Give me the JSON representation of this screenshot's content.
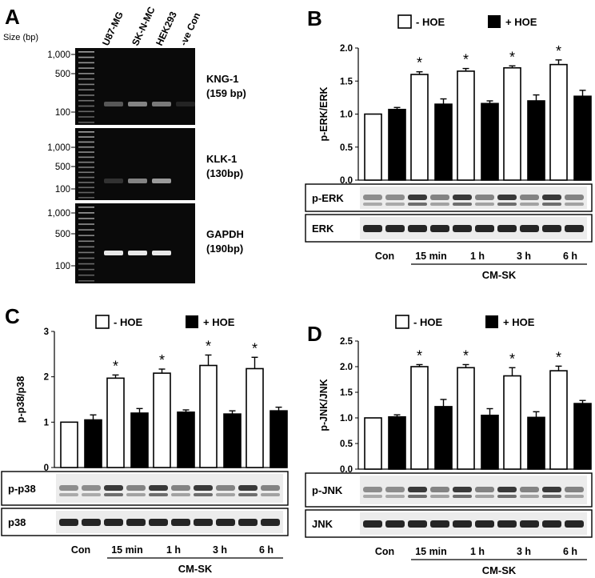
{
  "panel_a": {
    "letter": "A",
    "size_label": "Size (bp)",
    "lanes": [
      "U87-MG",
      "SK-N-MC",
      "HEK293",
      "-ve Con"
    ],
    "gels": [
      {
        "name": "KNG-1",
        "sub": "(159 bp)",
        "ticks": [
          "1,000",
          "500",
          "100"
        ],
        "bands": [
          0.35,
          0.55,
          0.5,
          0.12
        ]
      },
      {
        "name": "KLK-1",
        "sub": "(130bp)",
        "ticks": [
          "1,000",
          "500",
          "100"
        ],
        "bands": [
          0.18,
          0.55,
          0.65,
          0.0
        ]
      },
      {
        "name": "GAPDH",
        "sub": "(190bp)",
        "ticks": [
          "1,000",
          "500",
          "100"
        ],
        "bands": [
          1.0,
          1.0,
          1.0,
          0.0
        ]
      }
    ]
  },
  "chart_data": [
    {
      "panel": "B",
      "type": "bar",
      "title": "",
      "ylabel": "p-ERK/ERK",
      "xlabel": "CM-SK",
      "ylim": [
        0,
        2.0
      ],
      "yticks": [
        "0.0",
        "0.5",
        "1.0",
        "1.5",
        "2.0"
      ],
      "legend": [
        "- HOE",
        "+ HOE"
      ],
      "legend_position": "top",
      "categories": [
        "Con",
        "15 min",
        "1 h",
        "3 h",
        "6 h"
      ],
      "series": [
        {
          "name": "- HOE",
          "values": [
            1.0,
            1.6,
            1.65,
            1.7,
            1.75
          ],
          "errors": [
            0.0,
            0.04,
            0.04,
            0.03,
            0.07
          ]
        },
        {
          "name": "+ HOE",
          "values": [
            1.07,
            1.15,
            1.16,
            1.2,
            1.27
          ],
          "errors": [
            0.03,
            0.08,
            0.04,
            0.09,
            0.09
          ]
        }
      ],
      "significance": [
        "",
        "*",
        "*",
        "*",
        "*"
      ],
      "blots": [
        "p-ERK",
        "ERK"
      ]
    },
    {
      "panel": "C",
      "type": "bar",
      "title": "",
      "ylabel": "p-p38/p38",
      "xlabel": "CM-SK",
      "ylim": [
        0,
        3
      ],
      "yticks": [
        "0",
        "1",
        "2",
        "3"
      ],
      "legend": [
        "- HOE",
        "+ HOE"
      ],
      "legend_position": "top",
      "categories": [
        "Con",
        "15 min",
        "1 h",
        "3 h",
        "6 h"
      ],
      "series": [
        {
          "name": "- HOE",
          "values": [
            1.0,
            1.97,
            2.08,
            2.25,
            2.18
          ],
          "errors": [
            0.0,
            0.07,
            0.09,
            0.23,
            0.25
          ]
        },
        {
          "name": "+ HOE",
          "values": [
            1.05,
            1.2,
            1.22,
            1.18,
            1.25
          ],
          "errors": [
            0.11,
            0.1,
            0.05,
            0.07,
            0.08
          ]
        }
      ],
      "significance": [
        "",
        "*",
        "*",
        "*",
        "*"
      ],
      "blots": [
        "p-p38",
        "p38"
      ]
    },
    {
      "panel": "D",
      "type": "bar",
      "title": "",
      "ylabel": "p-JNK/JNK",
      "xlabel": "CM-SK",
      "ylim": [
        0,
        2.5
      ],
      "yticks": [
        "0.0",
        "0.5",
        "1.0",
        "1.5",
        "2.0",
        "2.5"
      ],
      "legend": [
        "- HOE",
        "+ HOE"
      ],
      "legend_position": "top",
      "categories": [
        "Con",
        "15 min",
        "1 h",
        "3 h",
        "6 h"
      ],
      "series": [
        {
          "name": "- HOE",
          "values": [
            1.0,
            2.0,
            1.98,
            1.82,
            1.92
          ],
          "errors": [
            0.0,
            0.04,
            0.06,
            0.16,
            0.09
          ]
        },
        {
          "name": "+ HOE",
          "values": [
            1.02,
            1.22,
            1.05,
            1.01,
            1.28
          ],
          "errors": [
            0.04,
            0.14,
            0.13,
            0.11,
            0.06
          ]
        }
      ],
      "significance": [
        "",
        "*",
        "*",
        "*",
        "*"
      ],
      "blots": [
        "p-JNK",
        "JNK"
      ]
    }
  ],
  "colors": {
    "open_bar": "#ffffff",
    "filled_bar": "#000000",
    "ink": "#000000",
    "gel_bg": "#0a0a0a",
    "band": "#e8e8e8",
    "blot_bg": "#ececec"
  }
}
